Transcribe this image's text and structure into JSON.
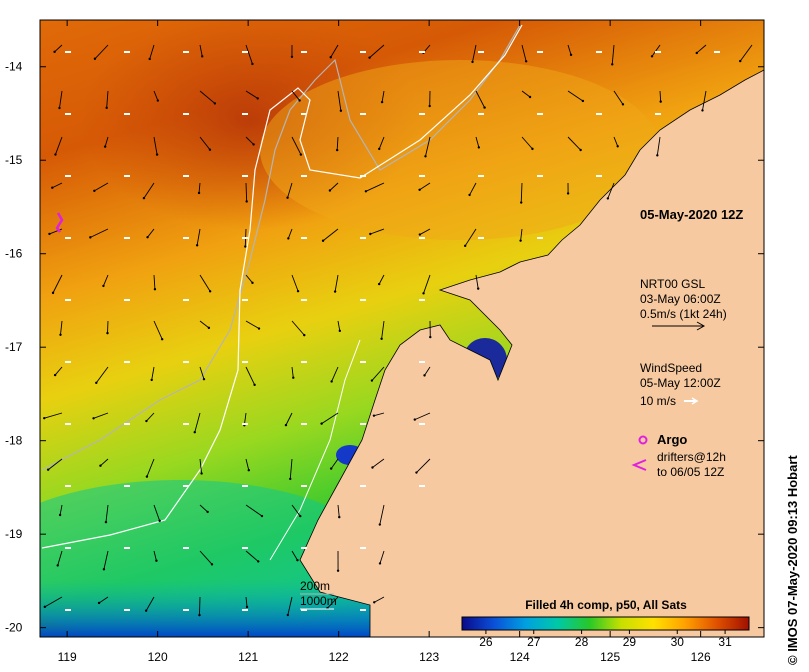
{
  "map": {
    "x_range": [
      118.7,
      126.7
    ],
    "y_range": [
      -20.1,
      -13.5
    ],
    "x_ticks": [
      119,
      120,
      121,
      122,
      123,
      124,
      125,
      126
    ],
    "y_ticks": [
      -14,
      -15,
      -16,
      -17,
      -18,
      -19,
      -20
    ],
    "x_tick_labels": [
      "119",
      "120",
      "121",
      "122",
      "123",
      "124",
      "125",
      "126"
    ],
    "y_tick_labels": [
      "-14",
      "-15",
      "-16",
      "-17",
      "-18",
      "-19",
      "-20"
    ],
    "land_color": "#f7c9a0",
    "contours": [
      {
        "label": "200m",
        "color": "#b5b5b5"
      },
      {
        "label": "1000m",
        "color": "#ffffff"
      }
    ]
  },
  "annotations": {
    "datetime": "05-May-2020 12Z",
    "current_product": "NRT00 GSL",
    "current_time": "03-May 06:00Z",
    "current_scale": "0.5m/s (1kt 24h)",
    "wind_title": "WindSpeed",
    "wind_time": "05-May 12:00Z",
    "wind_scale": "10 m/s",
    "argo_label": "Argo",
    "drifters_line1": "drifters@12h",
    "drifters_line2": "to 06/05 12Z",
    "credit": "© IMOS 07-May-2020 09:13 Hobart"
  },
  "colorbar": {
    "title": "Filled 4h comp, p50, All Sats",
    "range": [
      25.5,
      31.5
    ],
    "ticks": [
      26,
      27,
      28,
      29,
      30,
      31
    ],
    "tick_labels": [
      "26",
      "27",
      "28",
      "29",
      "30",
      "31"
    ],
    "stops": [
      "#0a0a8a",
      "#0a50d8",
      "#00a0e0",
      "#00c8a8",
      "#28c828",
      "#c8e000",
      "#ffe000",
      "#ffa000",
      "#e05000",
      "#a01000"
    ]
  },
  "chart_data": {
    "type": "heatmap",
    "title": "Filled 4h comp, p50, All Sats",
    "variable": "SST",
    "xlabel": "",
    "ylabel": "",
    "xlim": [
      118.7,
      126.7
    ],
    "ylim": [
      -20.1,
      -13.5
    ],
    "sst_samples": [
      {
        "lon": 120.8,
        "lat": -14.6,
        "sst": 31.0
      },
      {
        "lon": 121.0,
        "lat": -15.2,
        "sst": 30.9
      },
      {
        "lon": 119.5,
        "lat": -14.5,
        "sst": 30.3
      },
      {
        "lon": 122.5,
        "lat": -14.2,
        "sst": 30.4
      },
      {
        "lon": 124.0,
        "lat": -14.5,
        "sst": 30.0
      },
      {
        "lon": 125.5,
        "lat": -14.3,
        "sst": 29.5
      },
      {
        "lon": 120.0,
        "lat": -16.2,
        "sst": 30.2
      },
      {
        "lon": 121.5,
        "lat": -16.5,
        "sst": 29.8
      },
      {
        "lon": 123.0,
        "lat": -15.8,
        "sst": 29.6
      },
      {
        "lon": 119.5,
        "lat": -17.5,
        "sst": 29.3
      },
      {
        "lon": 121.0,
        "lat": -17.5,
        "sst": 28.8
      },
      {
        "lon": 119.5,
        "lat": -18.5,
        "sst": 28.4
      },
      {
        "lon": 121.0,
        "lat": -18.8,
        "sst": 28.1
      },
      {
        "lon": 119.5,
        "lat": -19.5,
        "sst": 27.8
      },
      {
        "lon": 120.5,
        "lat": -20.0,
        "sst": 26.5
      },
      {
        "lon": 123.5,
        "lat": -17.2,
        "sst": 26.2
      },
      {
        "lon": 121.9,
        "lat": -18.2,
        "sst": 26.8
      }
    ],
    "argo_floats": [
      {
        "lon": 118.9,
        "lat": -15.7
      }
    ]
  }
}
